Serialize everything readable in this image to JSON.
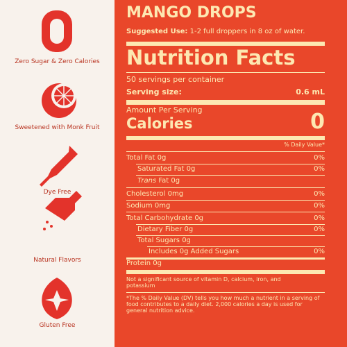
{
  "features": [
    {
      "label": "Zero Sugar & Zero Calories"
    },
    {
      "label": "Sweetened with Monk Fruit"
    },
    {
      "label": "Dye Free"
    },
    {
      "label": "Natural Flavors"
    },
    {
      "label": "Gluten Free"
    }
  ],
  "product": {
    "title": "MANGO DROPS",
    "suggested_use_label": "Suggested Use:",
    "suggested_use": "1-2 full droppers in 8 oz of water."
  },
  "nutrition": {
    "title": "Nutrition Facts",
    "servings": "50 servings per container",
    "serving_size_label": "Serving size:",
    "serving_size": "0.6 mL",
    "amount_per_serving": "Amount Per Serving",
    "calories_label": "Calories",
    "calories": 0,
    "dv_header": "% Daily Value*",
    "rows": [
      {
        "label": "Total Fat 0g",
        "dv": "0%"
      },
      {
        "label": "Saturated Fat 0g",
        "dv": "0%"
      },
      {
        "prefix": "Trans",
        "label": "Fat 0g"
      },
      {
        "label": "Cholesterol 0mg",
        "dv": "0%"
      },
      {
        "label": "Sodium 0mg",
        "dv": "0%"
      },
      {
        "label": "Total Carbohydrate 0g",
        "dv": "0%"
      },
      {
        "label": "Dietary Fiber 0g",
        "dv": "0%"
      },
      {
        "label": "Total Sugars 0g"
      },
      {
        "label": "Includes 0g Added Sugars",
        "dv": "0%"
      },
      {
        "label": "Protein 0g"
      }
    ],
    "footnote_1": "Not a significant source of vitamin D, calcium, iron, and potassium",
    "footnote_2": "*The % Daily Value (DV) tells you how much a nutrient in a serving of food contributes to a daily diet. 2,000 calories a day is used for general nutrition advice."
  }
}
